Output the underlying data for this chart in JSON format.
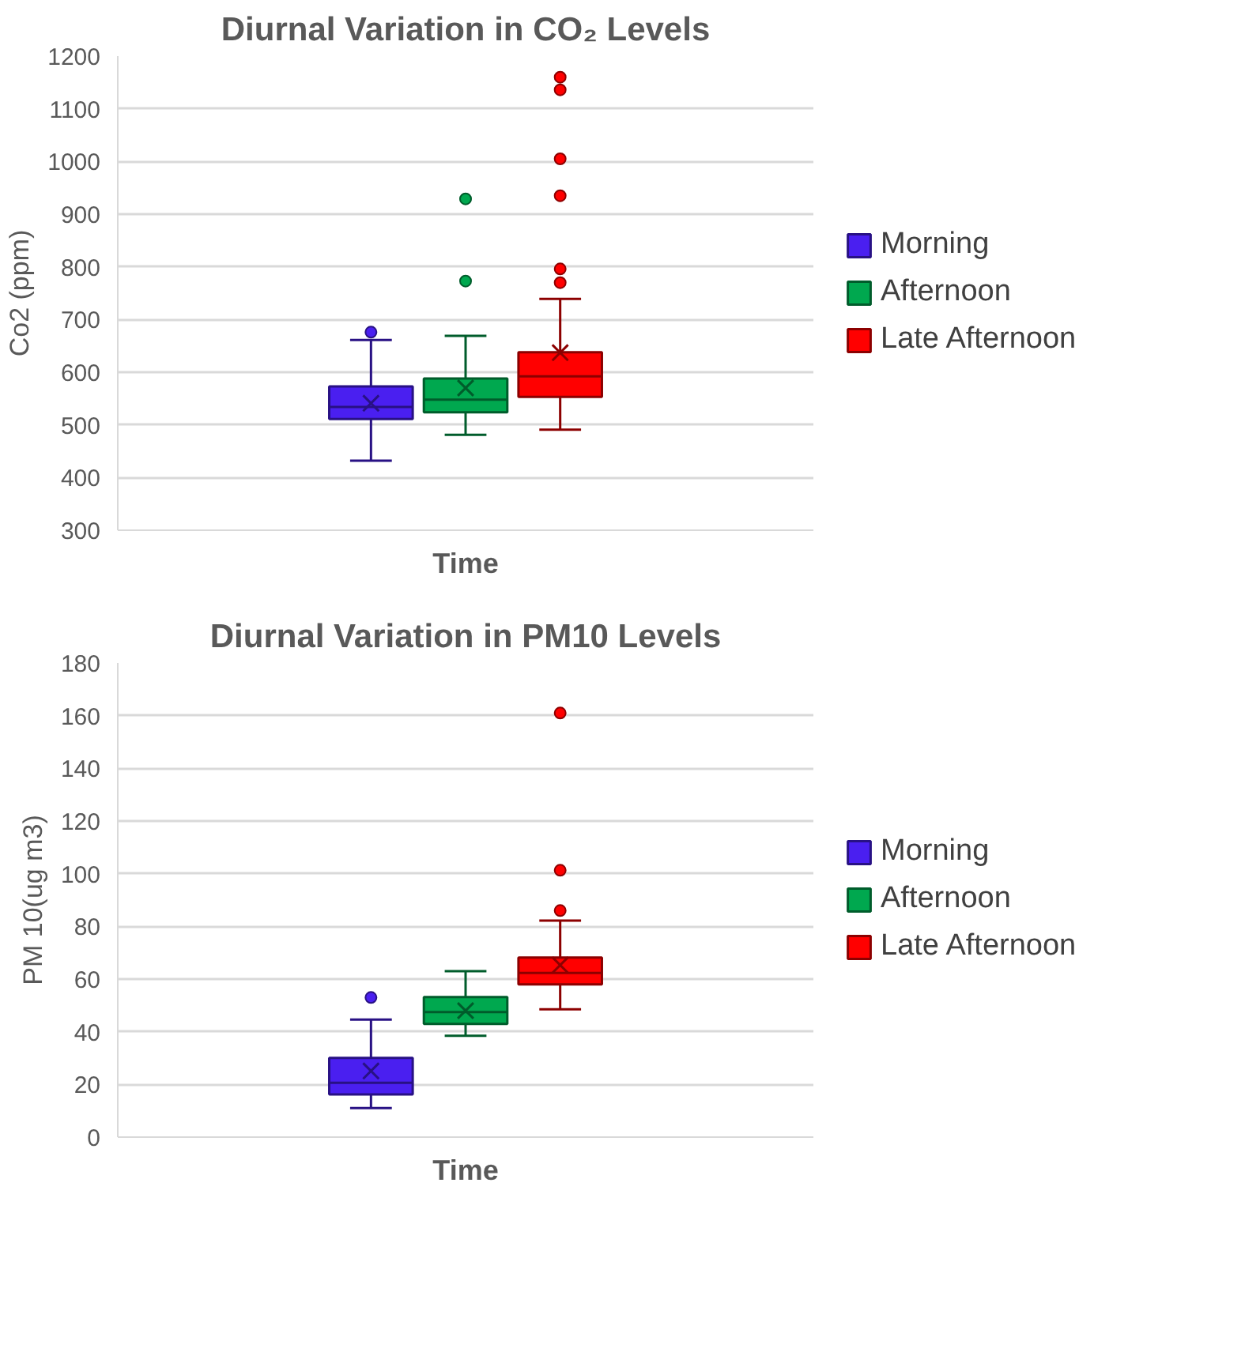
{
  "chart_data": [
    {
      "type": "box",
      "title": "Diurnal Variation in CO₂ Levels",
      "xlabel": "Time",
      "ylabel": "Co2 (ppm)",
      "categories": [
        null
      ],
      "ylim": [
        300,
        1200
      ],
      "yticks": [
        300,
        400,
        500,
        600,
        700,
        800,
        900,
        1000,
        1100,
        1200
      ],
      "grid": "y",
      "legend": "right",
      "series": [
        {
          "name": "Morning",
          "color": "#4a1ff0",
          "boxes": [
            {
              "low": 432,
              "q1": 511,
              "median": 534,
              "q3": 573,
              "high": 661,
              "mean": 541,
              "outliers": [
                676
              ]
            }
          ]
        },
        {
          "name": "Afternoon",
          "color": "#00a84f",
          "boxes": [
            {
              "low": 481,
              "q1": 524,
              "median": 548,
              "q3": 588,
              "high": 669,
              "mean": 570,
              "outliers": [
                773,
                929
              ]
            }
          ]
        },
        {
          "name": "Late Afternoon",
          "color": "#ff0000",
          "boxes": [
            {
              "low": 491,
              "q1": 553,
              "median": 592,
              "q3": 638,
              "high": 739,
              "mean": 637,
              "outliers": [
                770,
                796,
                935,
                1005,
                1136,
                1160
              ]
            }
          ]
        }
      ]
    },
    {
      "type": "box",
      "title": "Diurnal Variation in PM10 Levels",
      "xlabel": "Time",
      "ylabel": "PM 10(ug m3)",
      "categories": [
        null
      ],
      "ylim": [
        0,
        180
      ],
      "yticks": [
        0,
        20,
        40,
        60,
        80,
        100,
        120,
        140,
        160,
        180
      ],
      "grid": "y",
      "legend": "right",
      "series": [
        {
          "name": "Morning",
          "color": "#4a1ff0",
          "boxes": [
            {
              "low": 11,
              "q1": 16.2,
              "median": 20.6,
              "q3": 30.1,
              "high": 44.6,
              "mean": 25.1,
              "outliers": [
                53
              ]
            }
          ]
        },
        {
          "name": "Afternoon",
          "color": "#00a84f",
          "boxes": [
            {
              "low": 38.5,
              "q1": 43,
              "median": 47.5,
              "q3": 53.2,
              "high": 63,
              "mean": 48
            }
          ]
        },
        {
          "name": "Late Afternoon",
          "color": "#ff0000",
          "boxes": [
            {
              "low": 48.5,
              "q1": 58,
              "median": 62.3,
              "q3": 68.2,
              "high": 82.2,
              "mean": 65.3,
              "outliers": [
                86,
                101.3,
                161
              ]
            }
          ]
        }
      ]
    }
  ]
}
